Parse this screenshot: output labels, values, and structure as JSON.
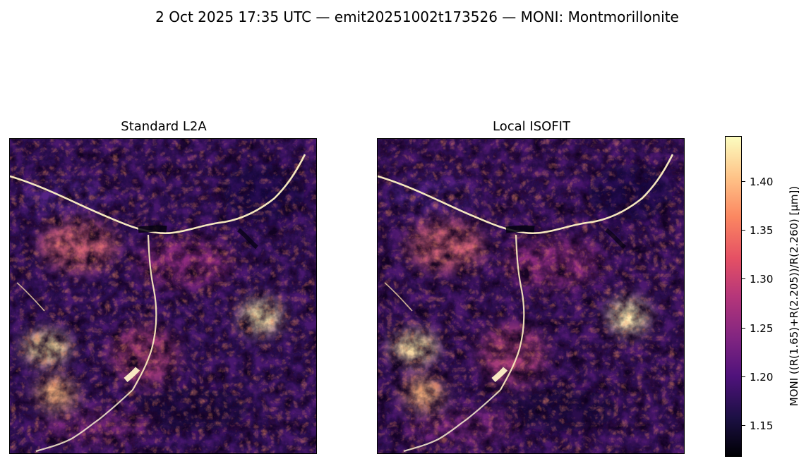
{
  "chart_data": {
    "type": "heatmap",
    "title": "2 Oct 2025 17:35 UTC — emit20251002t173526 — MONI: Montmorillonite",
    "panels": [
      {
        "title": "Standard L2A"
      },
      {
        "title": "Local ISOFIT"
      }
    ],
    "colormap": "magma",
    "colorbar": {
      "label": "MONI  ((R(1.65)+R(2.205))/R(2.260)  [µm])",
      "range": [
        1.118,
        1.444
      ],
      "ticks": [
        "1.15",
        "1.20",
        "1.25",
        "1.30",
        "1.35",
        "1.40"
      ]
    },
    "colors": {
      "low": "#000004",
      "mid": "#b5367a",
      "high": "#fcfdbf"
    }
  }
}
